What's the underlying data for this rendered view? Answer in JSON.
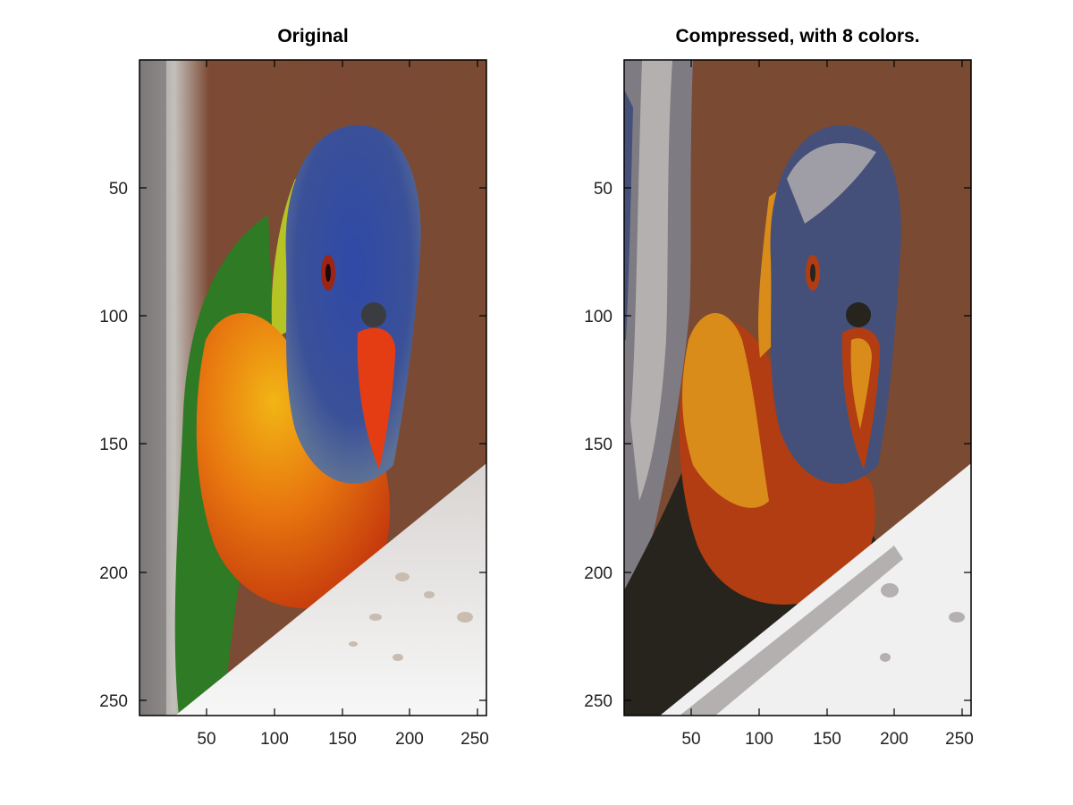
{
  "figure": {
    "panels": [
      {
        "title": "Original",
        "image": "rainbow-lorikeet-photo",
        "x_ticks": [
          "50",
          "100",
          "150",
          "200",
          "250"
        ],
        "y_ticks": [
          "50",
          "100",
          "150",
          "200",
          "250"
        ]
      },
      {
        "title": "Compressed, with 8 colors.",
        "image": "rainbow-lorikeet-quantized-8-colors",
        "x_ticks": [
          "50",
          "100",
          "150",
          "200",
          "250"
        ],
        "y_ticks": [
          "50",
          "100",
          "150",
          "200",
          "250"
        ]
      }
    ],
    "palette": {
      "brown_background": "#7a4a33",
      "blue_head": "#45507a",
      "orange_chest": "#d98c1a",
      "red_chest": "#b23d12",
      "dark": "#26241d",
      "gray_light": "#b5b0b0",
      "gray_mid": "#7f7b82",
      "white_perch": "#f0f0f0"
    }
  }
}
